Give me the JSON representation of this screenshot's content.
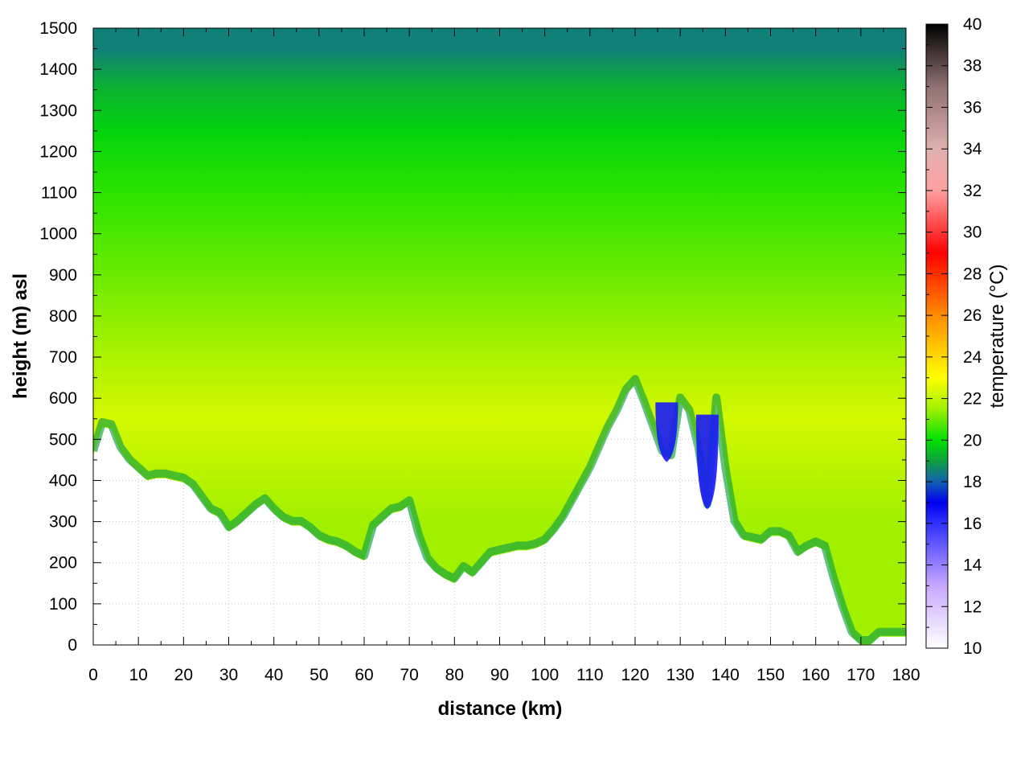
{
  "chart_data": {
    "type": "heatmap",
    "title": "",
    "xlabel": "distance (km)",
    "ylabel": "height (m) asl",
    "colorbar_label": "temperature (°C)",
    "xlim": [
      0,
      180
    ],
    "ylim": [
      0,
      1500
    ],
    "clim": [
      10,
      40
    ],
    "grid": true,
    "xticks": [
      0,
      10,
      20,
      30,
      40,
      50,
      60,
      70,
      80,
      90,
      100,
      110,
      120,
      130,
      140,
      150,
      160,
      170,
      180
    ],
    "yticks": [
      0,
      100,
      200,
      300,
      400,
      500,
      600,
      700,
      800,
      900,
      1000,
      1100,
      1200,
      1300,
      1400,
      1500
    ],
    "cticks": [
      10,
      12,
      14,
      16,
      18,
      20,
      22,
      24,
      26,
      28,
      30,
      32,
      34,
      36,
      38,
      40
    ],
    "colormap": [
      {
        "value": 10,
        "color": "#ffffff"
      },
      {
        "value": 13,
        "color": "#c8a8ff"
      },
      {
        "value": 16,
        "color": "#3030ff"
      },
      {
        "value": 17,
        "color": "#0000ee"
      },
      {
        "value": 18,
        "color": "#1060b0"
      },
      {
        "value": 19,
        "color": "#10a040"
      },
      {
        "value": 20,
        "color": "#00e000"
      },
      {
        "value": 21.5,
        "color": "#a0f000"
      },
      {
        "value": 23,
        "color": "#ffff00"
      },
      {
        "value": 26,
        "color": "#ff8c00"
      },
      {
        "value": 29,
        "color": "#ff0000"
      },
      {
        "value": 32,
        "color": "#ffa0a0"
      },
      {
        "value": 34,
        "color": "#e0b0b0"
      },
      {
        "value": 37,
        "color": "#907070"
      },
      {
        "value": 40,
        "color": "#000000"
      }
    ],
    "terrain_height_m": {
      "distance_km": [
        0,
        2,
        4,
        6,
        8,
        10,
        12,
        14,
        16,
        18,
        20,
        22,
        24,
        26,
        28,
        30,
        32,
        34,
        36,
        38,
        40,
        42,
        44,
        46,
        48,
        50,
        52,
        54,
        56,
        58,
        60,
        62,
        64,
        66,
        68,
        70,
        72,
        74,
        76,
        78,
        80,
        82,
        84,
        86,
        88,
        90,
        92,
        94,
        96,
        98,
        100,
        102,
        104,
        106,
        108,
        110,
        112,
        114,
        116,
        118,
        120,
        122,
        124,
        126,
        128,
        130,
        132,
        134,
        136,
        138,
        140,
        142,
        144,
        146,
        148,
        150,
        152,
        154,
        156,
        158,
        160,
        162,
        164,
        166,
        168,
        170,
        172,
        174,
        176,
        178,
        180
      ],
      "height": [
        460,
        530,
        525,
        470,
        440,
        420,
        400,
        405,
        405,
        400,
        395,
        380,
        350,
        320,
        310,
        275,
        290,
        310,
        330,
        345,
        320,
        300,
        290,
        290,
        275,
        255,
        245,
        240,
        230,
        215,
        205,
        280,
        300,
        320,
        325,
        340,
        260,
        200,
        175,
        160,
        150,
        180,
        165,
        190,
        215,
        220,
        225,
        230,
        230,
        235,
        245,
        270,
        300,
        340,
        380,
        420,
        470,
        520,
        560,
        610,
        635,
        580,
        520,
        460,
        450,
        590,
        560,
        470,
        330,
        590,
        420,
        290,
        255,
        250,
        245,
        265,
        265,
        255,
        215,
        230,
        240,
        230,
        150,
        80,
        20,
        0,
        0,
        20,
        20,
        20,
        20
      ],
      "blue_cold_pockets": [
        {
          "x_km": 127,
          "top_m": 590,
          "bottom_m": 445
        },
        {
          "x_km": 136,
          "top_m": 560,
          "bottom_m": 330
        }
      ]
    },
    "temperature_layers_degC": [
      {
        "height_m": 1450,
        "temp": 18.5
      },
      {
        "height_m": 1350,
        "temp": 19.3
      },
      {
        "height_m": 1250,
        "temp": 19.8
      },
      {
        "height_m": 1100,
        "temp": 20.4
      },
      {
        "height_m": 900,
        "temp": 21.0
      },
      {
        "height_m": 700,
        "temp": 21.7
      },
      {
        "height_m": 550,
        "temp": 22.3
      },
      {
        "height_m": 300,
        "temp": 21.5
      }
    ]
  }
}
